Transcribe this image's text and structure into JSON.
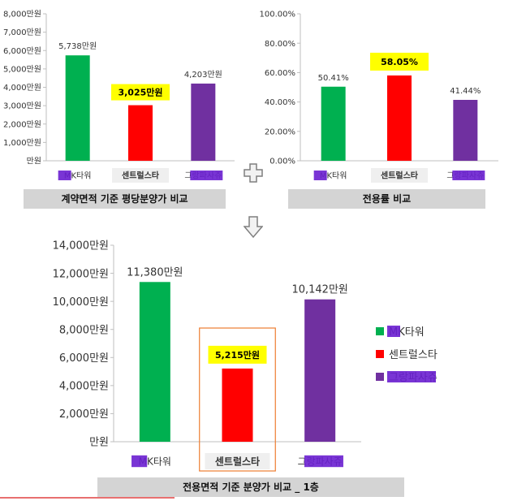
{
  "chart_data": [
    {
      "type": "bar",
      "categories": [
        "MK타워",
        "센트럴스타",
        "그랑파사쥬"
      ],
      "values": [
        5738,
        3025,
        4203
      ],
      "data_labels": [
        "5,738만원",
        "3,025만원",
        "4,203만원"
      ],
      "y_ticks": [
        "만원",
        "1,000만원",
        "2,000만원",
        "3,000만원",
        "4,000만원",
        "5,000만원",
        "6,000만원",
        "7,000만원",
        "8,000만원"
      ],
      "ylim": [
        0,
        8000
      ],
      "caption": "계약면적 기준 평당분양가 비교",
      "highlight_index": 1,
      "colors": [
        "#00b050",
        "#ff0000",
        "#7030a0"
      ]
    },
    {
      "type": "bar",
      "categories": [
        "MK타워",
        "센트럴스타",
        "그랑파사쥬"
      ],
      "values": [
        50.41,
        58.05,
        41.44
      ],
      "data_labels": [
        "50.41%",
        "58.05%",
        "41.44%"
      ],
      "y_ticks": [
        "0.00%",
        "20.00%",
        "40.00%",
        "60.00%",
        "80.00%",
        "100.00%"
      ],
      "ylim": [
        0,
        100
      ],
      "caption": "전용률 비교",
      "highlight_index": 1,
      "colors": [
        "#00b050",
        "#ff0000",
        "#7030a0"
      ]
    },
    {
      "type": "bar",
      "categories": [
        "MK타워",
        "센트럴스타",
        "그랑파사쥬"
      ],
      "values": [
        11380,
        5215,
        10142
      ],
      "data_labels": [
        "11,380만원",
        "5,215만원",
        "10,142만원"
      ],
      "y_ticks": [
        "만원",
        "2,000만원",
        "4,000만원",
        "6,000만원",
        "8,000만원",
        "10,000만원",
        "12,000만원",
        "14,000만원"
      ],
      "ylim": [
        0,
        14000
      ],
      "caption": "전용면적 기준 분양가 비교 _ 1층",
      "legend": [
        "MK타워",
        "센트럴스타",
        "그랑파사쥬"
      ],
      "legend_position": "right",
      "highlight_index": 1,
      "colors": [
        "#00b050",
        "#ff0000",
        "#7030a0"
      ]
    }
  ],
  "styles": {
    "highlight_label_bg": "#ffff00",
    "highlight_category_bg": "#efefef",
    "redaction_color": "#6a1fd0",
    "highlight_box_border": "#ed7d31",
    "caption_bg": "#d4d4d4",
    "axis_color": "#bfbfbf"
  }
}
